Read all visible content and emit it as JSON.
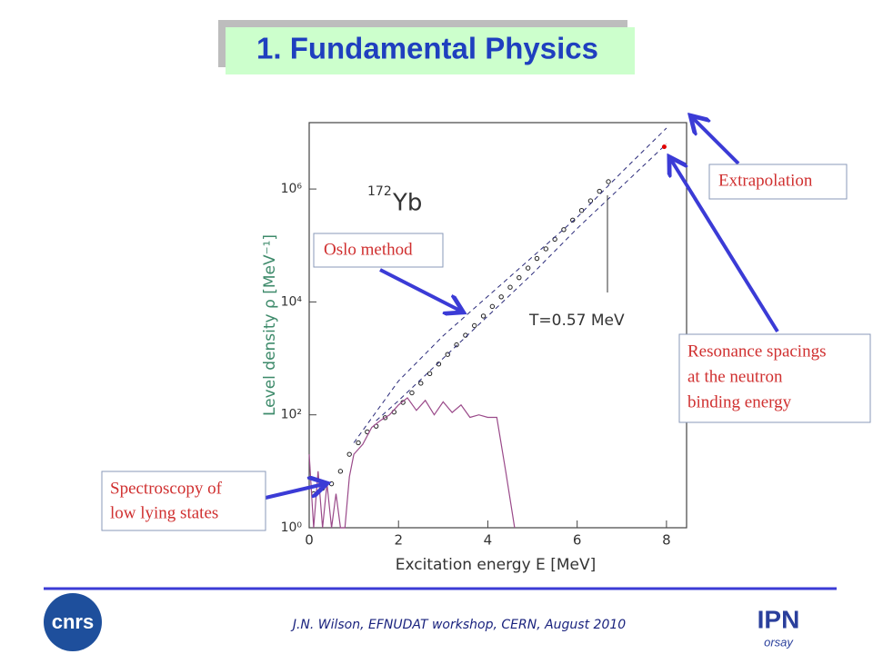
{
  "slide": {
    "title": "1. Fundamental Physics",
    "callouts": {
      "oslo": "Oslo method",
      "extrapolation": "Extrapolation",
      "resonance": [
        "Resonance spacings",
        "at the neutron",
        "binding energy"
      ],
      "spectroscopy": [
        "Spectroscopy of",
        "low lying states"
      ]
    },
    "footer": "J.N. Wilson,  EFNUDAT workshop, CERN, August 2010",
    "logos": {
      "left": "cnrs",
      "right_top": "IPN",
      "right_bottom": "orsay"
    }
  },
  "chart_data": {
    "type": "scatter",
    "x_label": "Excitation energy E [MeV]",
    "y_label": "Level density ρ [MeV⁻¹]",
    "nucleus": {
      "mass": "172",
      "symbol": "Yb"
    },
    "annotation": "T=0.57 MeV",
    "xlim": [
      0,
      8.45
    ],
    "xticks": [
      0,
      2,
      4,
      6,
      8
    ],
    "ylim": [
      1,
      15000000
    ],
    "log_y": true,
    "grid": false,
    "yticks": [
      {
        "value": 1,
        "label": "10⁰"
      },
      {
        "value": 100,
        "label": "10²"
      },
      {
        "value": 10000,
        "label": "10⁴"
      },
      {
        "value": 1000000,
        "label": "10⁶"
      }
    ],
    "series": [
      {
        "style": "points",
        "color": "#222222",
        "x": [
          0.1,
          0.3,
          0.5,
          0.7,
          0.9,
          1.1,
          1.3,
          1.5,
          1.7,
          1.9,
          2.1,
          2.3,
          2.5,
          2.7,
          2.9,
          3.1,
          3.3,
          3.5,
          3.7,
          3.9,
          4.1,
          4.3,
          4.5,
          4.7,
          4.9,
          5.1,
          5.3,
          5.5,
          5.7,
          5.9,
          6.1,
          6.3,
          6.5,
          6.7
        ],
        "values": [
          4,
          5,
          6,
          10,
          20,
          32,
          50,
          63,
          89,
          112,
          166,
          245,
          363,
          537,
          794,
          1175,
          1738,
          2570,
          3802,
          5623,
          8318,
          12300,
          18200,
          26900,
          39800,
          58900,
          87100,
          129000,
          191000,
          282000,
          417000,
          617000,
          912000,
          1350000
        ]
      },
      {
        "style": "dashed",
        "color": "#2a2a7a",
        "x": [
          1,
          2,
          3,
          4,
          5,
          6,
          7,
          8
        ],
        "values": [
          32,
          398,
          2512,
          12590,
          63100,
          316000,
          2000000,
          12000000
        ]
      },
      {
        "style": "dashed",
        "color": "#2a2a7a",
        "x": [
          1.5,
          2,
          3,
          4,
          5,
          6,
          7,
          8
        ],
        "values": [
          79,
          178,
          1000,
          5620,
          31600,
          200000,
          1120000,
          6310000
        ]
      },
      {
        "style": "line",
        "color": "#9a4a8a",
        "x": [
          0,
          0.1,
          0.2,
          0.3,
          0.4,
          0.5,
          0.6,
          0.7,
          0.8,
          0.9,
          1.0,
          1.2,
          1.4,
          1.6,
          1.8,
          2.0,
          2.2,
          2.4,
          2.6,
          2.8,
          3.0,
          3.2,
          3.4,
          3.6,
          3.8,
          4.0,
          4.2,
          4.4,
          4.6
        ],
        "values": [
          20,
          1,
          10,
          1,
          6,
          1,
          4,
          1,
          1,
          8,
          20,
          30,
          60,
          80,
          100,
          150,
          200,
          120,
          180,
          100,
          170,
          110,
          150,
          90,
          100,
          90,
          90,
          10,
          1
        ]
      },
      {
        "style": "dot",
        "color": "#e00000",
        "x": [
          7.95
        ],
        "values": [
          5600000
        ]
      }
    ]
  }
}
